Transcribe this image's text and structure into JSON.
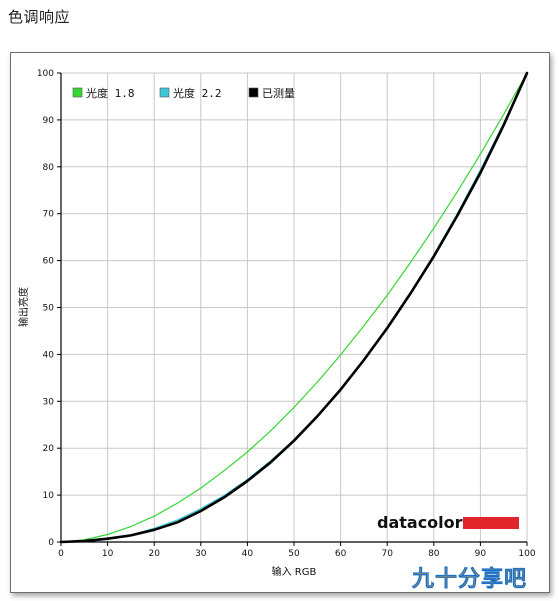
{
  "page_title": "色调响应",
  "brand": {
    "logo_text": "datacolor",
    "accent_color": "#e0262b"
  },
  "watermark": "九十分享吧",
  "colors": {
    "grid": "#c8c8c8",
    "gamma_18": "#33d633",
    "gamma_22": "#3cc8d8",
    "measured": "#000000"
  },
  "chart_data": {
    "type": "line",
    "title": "",
    "xlabel": "输入 RGB",
    "ylabel": "输出亮度",
    "xlim": [
      0,
      100
    ],
    "ylim": [
      0,
      100
    ],
    "xticks": [
      0,
      10,
      20,
      30,
      40,
      50,
      60,
      70,
      80,
      90,
      100
    ],
    "yticks": [
      0,
      10,
      20,
      30,
      40,
      50,
      60,
      70,
      80,
      90,
      100
    ],
    "grid": true,
    "legend_position": "top-left",
    "series": [
      {
        "name": "光度 1.8",
        "color": "#33d633",
        "x": [
          0,
          5,
          10,
          15,
          20,
          25,
          30,
          35,
          40,
          45,
          50,
          55,
          60,
          65,
          70,
          75,
          80,
          85,
          90,
          95,
          100
        ],
        "y": [
          0,
          0.5,
          1.6,
          3.3,
          5.5,
          8.3,
          11.5,
          15.2,
          19.2,
          23.7,
          28.7,
          34.1,
          39.9,
          46.1,
          52.6,
          59.6,
          66.9,
          74.6,
          82.7,
          91.2,
          100
        ]
      },
      {
        "name": "光度 2.2",
        "color": "#3cc8d8",
        "x": [
          0,
          5,
          10,
          15,
          20,
          25,
          30,
          35,
          40,
          45,
          50,
          55,
          60,
          65,
          70,
          75,
          80,
          85,
          90,
          95,
          100
        ],
        "y": [
          0,
          0.1,
          0.6,
          1.5,
          2.9,
          4.7,
          7.1,
          9.9,
          13.3,
          17.3,
          21.8,
          26.8,
          32.5,
          38.7,
          45.6,
          53.1,
          61.2,
          69.9,
          79.3,
          89.3,
          100
        ]
      },
      {
        "name": "已测量",
        "color": "#000000",
        "x": [
          0,
          5,
          10,
          15,
          20,
          25,
          30,
          35,
          40,
          45,
          50,
          55,
          60,
          65,
          70,
          75,
          80,
          85,
          90,
          95,
          100
        ],
        "y": [
          0,
          0.2,
          0.7,
          1.4,
          2.6,
          4.2,
          6.6,
          9.5,
          13.0,
          17.0,
          21.6,
          26.8,
          32.5,
          38.8,
          45.6,
          53.0,
          60.9,
          69.5,
          78.7,
          88.9,
          100
        ]
      }
    ]
  }
}
